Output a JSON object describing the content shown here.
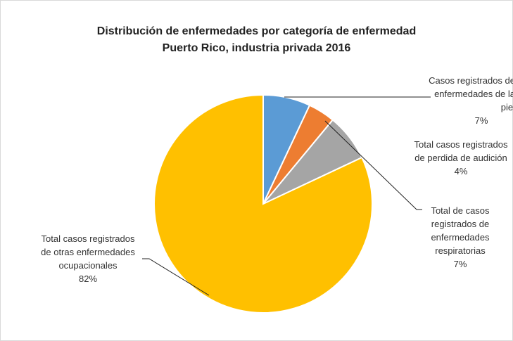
{
  "chart_data": {
    "type": "pie",
    "title": "Distribución de enfermedades por categoría de enfermedad",
    "subtitle": "Puerto Rico, industria privada 2016",
    "categories": [
      "Casos registrados de enfermedades de la piel",
      "Total casos registrados de perdida de audición",
      "Total de casos registrados de enfermedades respiratorias",
      "Total casos registrados de otras enfermedades ocupacionales"
    ],
    "values": [
      7,
      4,
      7,
      82
    ],
    "value_labels": [
      "7%",
      "4%",
      "7%",
      "82%"
    ],
    "colors": [
      "#5b9bd5",
      "#ed7d31",
      "#a5a5a5",
      "#ffc000"
    ]
  }
}
